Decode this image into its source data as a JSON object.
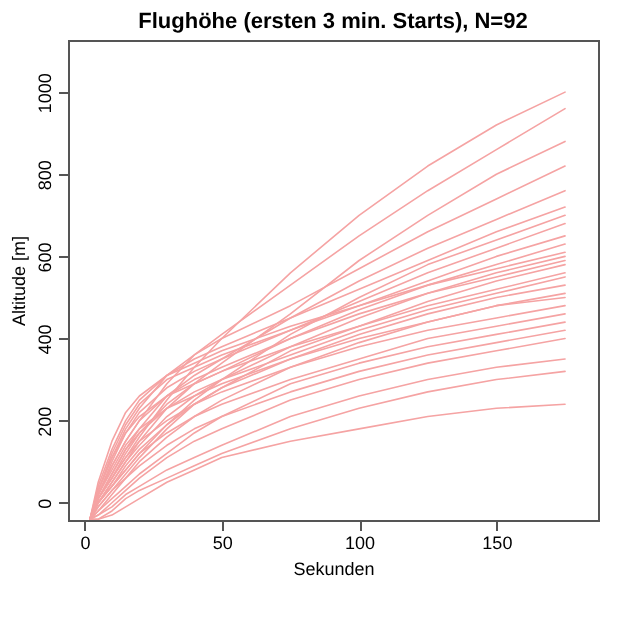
{
  "chart_data": {
    "type": "line",
    "title": "Flughöhe (ersten 3 min. Starts), N=92",
    "xlabel": "Sekunden",
    "ylabel": "Altitude [m]",
    "x": [
      2,
      5,
      10,
      15,
      20,
      30,
      40,
      50,
      75,
      100,
      125,
      150,
      175
    ],
    "xlim": [
      -6,
      187
    ],
    "xticks": [
      0,
      50,
      100,
      150
    ],
    "ylim": [
      -42,
      1127
    ],
    "yticks": [
      0,
      200,
      400,
      600,
      800,
      1000
    ],
    "grid": false,
    "legend": false,
    "marker": "none",
    "line_style": "solid",
    "series": [
      {
        "color": "#f5a3a3",
        "values": [
          -40,
          10,
          60,
          110,
          160,
          250,
          330,
          400,
          560,
          700,
          820,
          920,
          1000
        ]
      },
      {
        "color": "#f5a3a3",
        "values": [
          -40,
          20,
          90,
          150,
          200,
          290,
          360,
          410,
          530,
          650,
          760,
          860,
          960
        ]
      },
      {
        "color": "#f5a3a3",
        "values": [
          -40,
          0,
          50,
          100,
          150,
          230,
          290,
          340,
          460,
          590,
          700,
          800,
          880
        ]
      },
      {
        "color": "#f5a3a3",
        "values": [
          -40,
          30,
          110,
          180,
          230,
          310,
          360,
          400,
          480,
          570,
          660,
          740,
          820
        ]
      },
      {
        "color": "#f5a3a3",
        "values": [
          -40,
          10,
          70,
          130,
          180,
          260,
          310,
          350,
          450,
          540,
          620,
          690,
          760
        ]
      },
      {
        "color": "#f5a3a3",
        "values": [
          -40,
          40,
          130,
          200,
          250,
          310,
          350,
          380,
          450,
          520,
          590,
          660,
          720
        ]
      },
      {
        "color": "#f5a3a3",
        "values": [
          -40,
          0,
          40,
          80,
          120,
          190,
          250,
          300,
          410,
          500,
          580,
          640,
          700
        ]
      },
      {
        "color": "#f5a3a3",
        "values": [
          -40,
          20,
          100,
          170,
          220,
          280,
          320,
          350,
          420,
          490,
          560,
          620,
          680
        ]
      },
      {
        "color": "#f5a3a3",
        "values": [
          -40,
          30,
          120,
          190,
          240,
          300,
          330,
          360,
          420,
          480,
          540,
          600,
          650
        ]
      },
      {
        "color": "#f5a3a3",
        "values": [
          -40,
          10,
          60,
          120,
          170,
          240,
          290,
          320,
          400,
          470,
          530,
          580,
          630
        ]
      },
      {
        "color": "#f5a3a3",
        "values": [
          -40,
          50,
          150,
          220,
          260,
          310,
          340,
          370,
          430,
          480,
          530,
          570,
          610
        ]
      },
      {
        "color": "#f5a3a3",
        "values": [
          -40,
          0,
          50,
          100,
          140,
          210,
          260,
          300,
          380,
          450,
          510,
          560,
          600
        ]
      },
      {
        "color": "#f5a3a3",
        "values": [
          -40,
          20,
          90,
          150,
          200,
          260,
          300,
          330,
          400,
          460,
          510,
          550,
          590
        ]
      },
      {
        "color": "#f5a3a3",
        "values": [
          -40,
          -10,
          30,
          70,
          110,
          180,
          240,
          280,
          370,
          430,
          490,
          540,
          580
        ]
      },
      {
        "color": "#f5a3a3",
        "values": [
          -40,
          30,
          110,
          170,
          210,
          260,
          290,
          320,
          380,
          430,
          480,
          520,
          560
        ]
      },
      {
        "color": "#f5a3a3",
        "values": [
          -40,
          10,
          70,
          130,
          170,
          230,
          270,
          300,
          360,
          420,
          470,
          510,
          550
        ]
      },
      {
        "color": "#f5a3a3",
        "values": [
          -40,
          0,
          40,
          90,
          130,
          190,
          240,
          280,
          350,
          410,
          460,
          500,
          530
        ]
      },
      {
        "color": "#f5a3a3",
        "values": [
          -40,
          20,
          80,
          140,
          180,
          230,
          260,
          290,
          350,
          400,
          440,
          480,
          510
        ]
      },
      {
        "color": "#f5a3a3",
        "values": [
          -40,
          -20,
          20,
          60,
          100,
          160,
          210,
          250,
          330,
          390,
          440,
          480,
          500
        ]
      },
      {
        "color": "#f5a3a3",
        "values": [
          -40,
          10,
          60,
          110,
          150,
          200,
          240,
          270,
          330,
          380,
          420,
          450,
          480
        ]
      },
      {
        "color": "#f5a3a3",
        "values": [
          -40,
          0,
          40,
          80,
          120,
          170,
          210,
          240,
          300,
          350,
          400,
          430,
          460
        ]
      },
      {
        "color": "#f5a3a3",
        "values": [
          -40,
          -20,
          10,
          40,
          70,
          120,
          170,
          210,
          290,
          340,
          380,
          410,
          440
        ]
      },
      {
        "color": "#f5a3a3",
        "values": [
          -40,
          -10,
          30,
          60,
          90,
          140,
          180,
          210,
          270,
          320,
          360,
          390,
          420
        ]
      },
      {
        "color": "#f5a3a3",
        "values": [
          -40,
          -30,
          0,
          30,
          60,
          110,
          150,
          180,
          250,
          300,
          340,
          370,
          400
        ]
      },
      {
        "color": "#f5a3a3",
        "values": [
          -40,
          -30,
          -10,
          20,
          40,
          80,
          110,
          140,
          210,
          260,
          300,
          330,
          350
        ]
      },
      {
        "color": "#f5a3a3",
        "values": [
          -40,
          -40,
          -20,
          10,
          30,
          60,
          90,
          120,
          180,
          230,
          270,
          300,
          320
        ]
      },
      {
        "color": "#f5a3a3",
        "values": [
          -40,
          -40,
          -30,
          -10,
          10,
          50,
          80,
          110,
          150,
          180,
          210,
          230,
          240
        ]
      }
    ]
  }
}
